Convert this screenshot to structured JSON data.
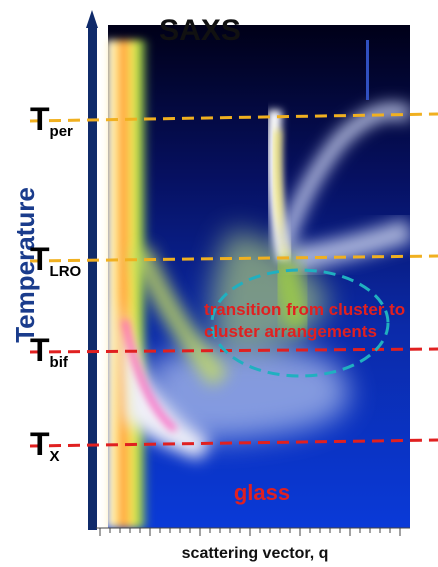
{
  "title": "SAXS",
  "y_axis_label": "Temperature",
  "x_axis_label": "scattering vector,  q",
  "levels": [
    {
      "symbol": "T",
      "subscript": "per"
    },
    {
      "symbol": "T",
      "subscript": "LRO"
    },
    {
      "symbol": "T",
      "subscript": "bif"
    },
    {
      "symbol": "T",
      "subscript": "X"
    }
  ],
  "annotation": [
    "transition from cluster to",
    "cluster arrangements"
  ],
  "region_label": "glass"
}
